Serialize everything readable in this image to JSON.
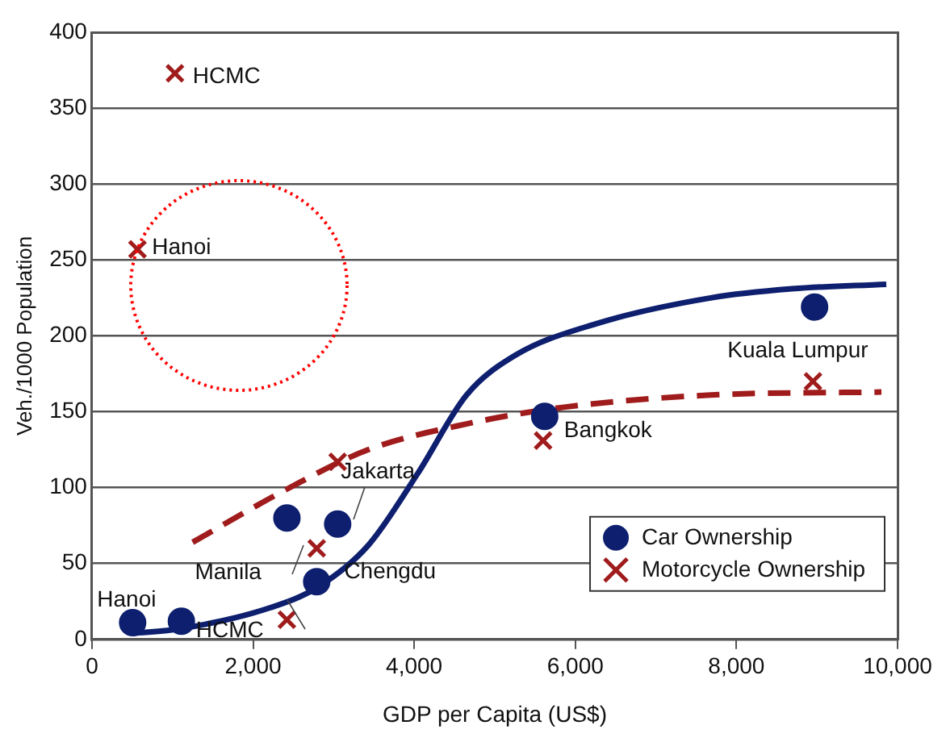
{
  "chart_data": {
    "type": "scatter",
    "xlabel": "GDP per Capita (US$)",
    "ylabel": "Veh./1000 Population",
    "xlim": [
      0,
      10000
    ],
    "xticks": [
      {
        "value": 0,
        "label": "0"
      },
      {
        "value": 2000,
        "label": "2,000"
      },
      {
        "value": 4000,
        "label": "4,000"
      },
      {
        "value": 6000,
        "label": "6,000"
      },
      {
        "value": 8000,
        "label": "8,000"
      },
      {
        "value": 10000,
        "label": "10,000"
      }
    ],
    "ylim": [
      0,
      400
    ],
    "yticks": [
      0,
      50,
      100,
      150,
      200,
      250,
      300,
      350,
      400
    ],
    "grid": "y",
    "legend": "bottom right",
    "series": [
      {
        "name": "Car Ownership",
        "marker": "circle",
        "color": "#0d1f6e",
        "x": [
          505,
          1110,
          2420,
          3050,
          2790,
          5620,
          8970
        ],
        "values": [
          11,
          12,
          80,
          76,
          38,
          147,
          219
        ]
      },
      {
        "name": "Motorcycle Ownership",
        "marker": "cross",
        "color": "#a01c1c",
        "x": [
          565,
          1030,
          2420,
          2790,
          3050,
          5600,
          8950
        ],
        "values": [
          257,
          373,
          13,
          60,
          117,
          131,
          170
        ]
      },
      {
        "type": "line",
        "marker": "none",
        "line_style": "solid",
        "color": "#0d1f6e",
        "x": [
          500,
          1100,
          2220,
          2790,
          3430,
          4040,
          4650,
          5250,
          6260,
          7680,
          8690,
          9860
        ],
        "values": [
          4,
          7,
          21,
          34,
          62,
          109,
          161,
          187,
          208,
          225,
          231,
          234
        ]
      },
      {
        "type": "line",
        "marker": "none",
        "line_style": "dashed",
        "color": "#a01c1c",
        "x": [
          1250,
          2420,
          3430,
          4650,
          5860,
          7680,
          9800
        ],
        "values": [
          64,
          99,
          125,
          142,
          153,
          161,
          163
        ]
      }
    ],
    "annotations": [
      {
        "text": "HCMC",
        "x": 1030,
        "y": 373
      },
      {
        "text": "Hanoi",
        "x": 565,
        "y": 257
      },
      {
        "text": "Kuala Lumpur",
        "x": 8950,
        "y": 170
      },
      {
        "text": "Bangkok",
        "x": 5620,
        "y": 147
      },
      {
        "text": "Jakarta",
        "x": 3050,
        "y": 76
      },
      {
        "text": "Chengdu",
        "x": 2790,
        "y": 38
      },
      {
        "text": "Manila",
        "x": 2420,
        "y": 80
      },
      {
        "text": "Hanoi",
        "x": 505,
        "y": 11
      },
      {
        "text": "HCMC",
        "x": 1110,
        "y": 12
      }
    ]
  }
}
